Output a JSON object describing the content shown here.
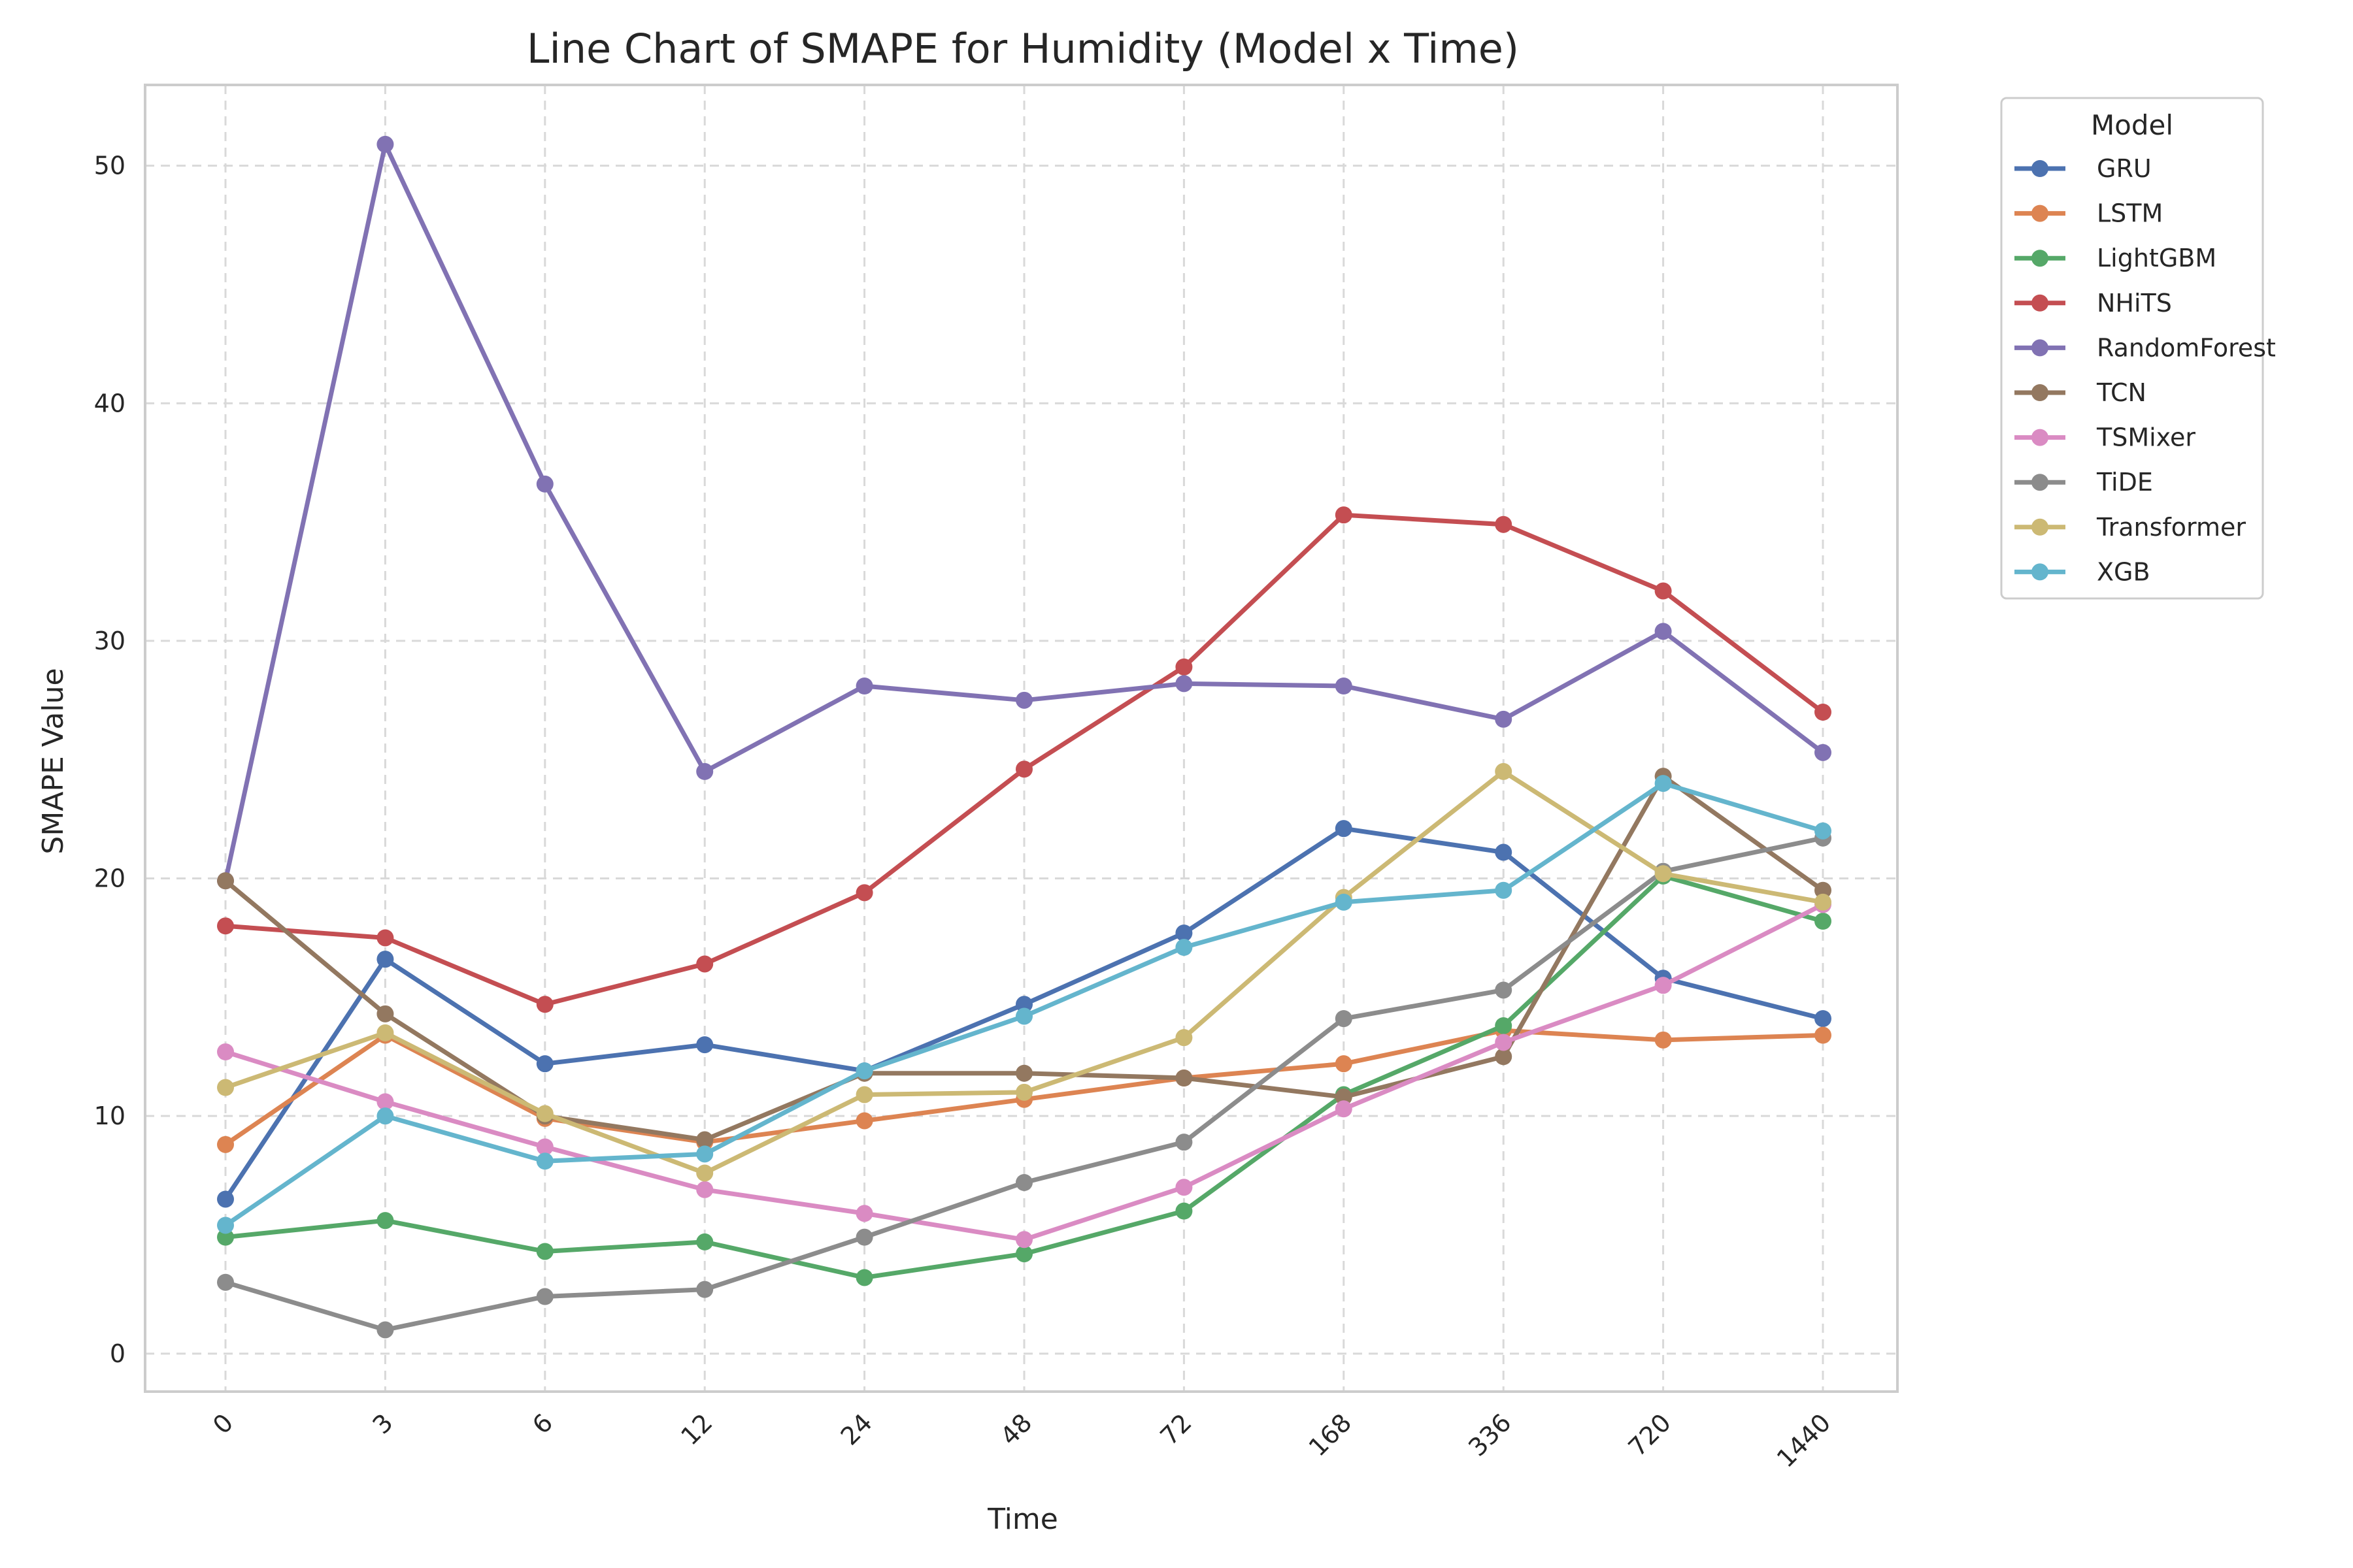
{
  "chart_data": {
    "type": "line",
    "title": "Line Chart of SMAPE for Humidity (Model x Time)",
    "xlabel": "Time",
    "ylabel": "SMAPE Value",
    "categories": [
      "0",
      "3",
      "6",
      "12",
      "24",
      "48",
      "72",
      "168",
      "336",
      "720",
      "1440"
    ],
    "yticks": [
      0,
      10,
      20,
      30,
      40,
      50
    ],
    "ylim": [
      -1.6,
      53.4
    ],
    "grid": true,
    "legend": {
      "title": "Model",
      "placement": "outside top-right"
    },
    "series": [
      {
        "name": "GRU",
        "color": "#4c72b0",
        "values": [
          6.5,
          16.6,
          12.2,
          13.0,
          11.9,
          14.7,
          17.7,
          22.1,
          21.1,
          15.8,
          14.1
        ]
      },
      {
        "name": "LSTM",
        "color": "#dd8452",
        "values": [
          8.8,
          13.4,
          9.9,
          8.9,
          9.8,
          10.7,
          11.6,
          12.2,
          13.6,
          13.2,
          13.4
        ]
      },
      {
        "name": "LightGBM",
        "color": "#55a868",
        "values": [
          4.9,
          5.6,
          4.3,
          4.7,
          3.2,
          4.2,
          6.0,
          10.9,
          13.8,
          20.1,
          18.2
        ]
      },
      {
        "name": "NHiTS",
        "color": "#c44e52",
        "values": [
          18.0,
          17.5,
          14.7,
          16.4,
          19.4,
          24.6,
          28.9,
          35.3,
          34.9,
          32.1,
          27.0
        ]
      },
      {
        "name": "RandomForest",
        "color": "#8172b3",
        "values": [
          19.9,
          50.9,
          36.6,
          24.5,
          28.1,
          27.5,
          28.2,
          28.1,
          26.7,
          30.4,
          25.3
        ]
      },
      {
        "name": "TCN",
        "color": "#937860",
        "values": [
          19.9,
          14.3,
          10.0,
          9.0,
          11.8,
          11.8,
          11.6,
          10.8,
          12.5,
          24.3,
          19.5
        ]
      },
      {
        "name": "TSMixer",
        "color": "#da8bc3",
        "values": [
          12.7,
          10.6,
          8.7,
          6.9,
          5.9,
          4.8,
          7.0,
          10.3,
          13.1,
          15.5,
          18.9
        ]
      },
      {
        "name": "TiDE",
        "color": "#8c8c8c",
        "values": [
          3.0,
          1.0,
          2.4,
          2.7,
          4.9,
          7.2,
          8.9,
          14.1,
          15.3,
          20.3,
          21.7
        ]
      },
      {
        "name": "Transformer",
        "color": "#ccb974",
        "values": [
          11.2,
          13.5,
          10.1,
          7.6,
          10.9,
          11.0,
          13.3,
          19.2,
          24.5,
          20.2,
          19.0
        ]
      },
      {
        "name": "XGB",
        "color": "#64b5cd",
        "values": [
          5.4,
          10.0,
          8.1,
          8.4,
          11.9,
          14.2,
          17.1,
          19.0,
          19.5,
          24.0,
          22.0
        ]
      }
    ]
  }
}
